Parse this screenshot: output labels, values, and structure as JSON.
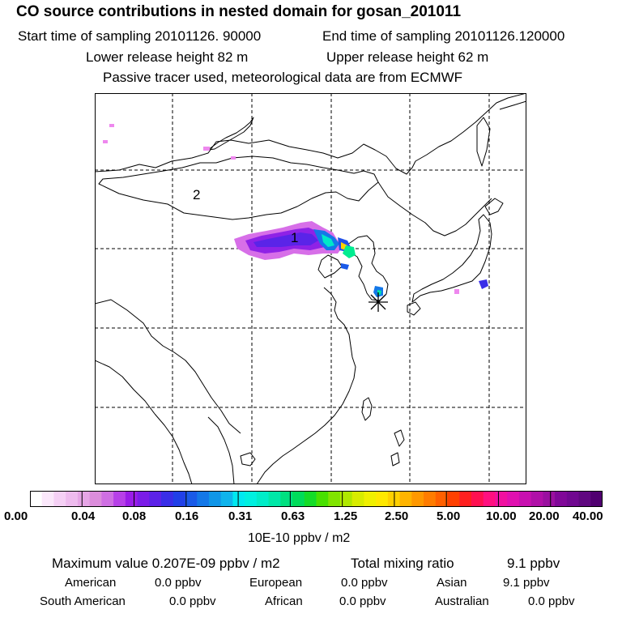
{
  "header": {
    "title": "CO  source contributions in nested domain for gosan_201011",
    "start_label": "Start time of sampling 20101126. 90000",
    "end_label": "End time of sampling 20101126.120000",
    "lower_label": "Lower release height   82 m",
    "upper_label": "Upper release height   62 m",
    "tracer_note": "Passive tracer used, meteorological data are from ECMWF"
  },
  "map": {
    "region_labels": [
      "2",
      "1"
    ],
    "receptor_symbol": "asterisk"
  },
  "colorbar": {
    "tick_labels": [
      "0.00",
      "0.04",
      "0.08",
      "0.16",
      "0.31",
      "0.63",
      "1.25",
      "2.50",
      "5.00",
      "10.00",
      "20.00",
      "40.00"
    ],
    "units": "10E-10 ppbv / m2",
    "colors": [
      "#ffffff",
      "#fbe8fb",
      "#f5d0f5",
      "#eebbee",
      "#e6a5e6",
      "#dc8ddc",
      "#cf6fe3",
      "#b740e8",
      "#9a1ce8",
      "#7b1ce8",
      "#5c22e8",
      "#3a2ee8",
      "#2140e8",
      "#1a5ae8",
      "#1478e8",
      "#1096e8",
      "#0fb4ec",
      "#00e8f0",
      "#00f0e0",
      "#00ecc8",
      "#00e8a8",
      "#00e080",
      "#00dc5a",
      "#14dc28",
      "#48e000",
      "#80e400",
      "#b0e800",
      "#d8ec00",
      "#f0f000",
      "#ffe800",
      "#ffd000",
      "#ffb400",
      "#ff9800",
      "#ff7c00",
      "#ff6000",
      "#ff4000",
      "#ff2020",
      "#ff1050",
      "#ff1080",
      "#f010a0",
      "#e010b0",
      "#c810b0",
      "#b010a8",
      "#9a10a0",
      "#800898",
      "#700890",
      "#600880",
      "#500070"
    ]
  },
  "summary": {
    "max_label": "Maximum value  0.207E-09 ppbv / m2",
    "total_label": "Total mixing ratio",
    "total_value": "9.1 ppbv",
    "rows": [
      [
        {
          "name": "American",
          "value": "0.0 ppbv"
        },
        {
          "name": "European",
          "value": "0.0 ppbv"
        },
        {
          "name": "Asian",
          "value": "9.1 ppbv"
        }
      ],
      [
        {
          "name": "South American",
          "value": "0.0 ppbv"
        },
        {
          "name": "African",
          "value": "0.0 ppbv"
        },
        {
          "name": "Australian",
          "value": "0.0 ppbv"
        }
      ]
    ]
  }
}
